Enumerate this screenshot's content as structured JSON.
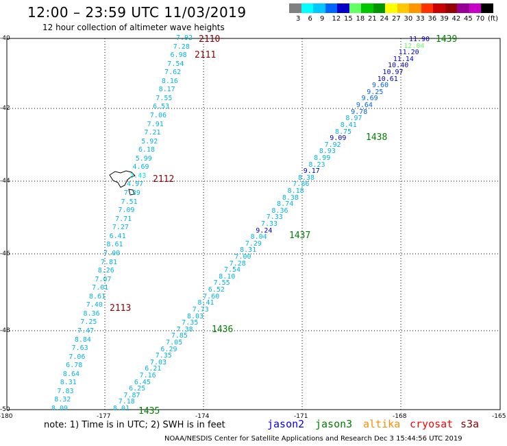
{
  "header": {
    "title": "12:00 – 23:59 UTC 11/03/2019",
    "subtitle": "12 hour collection of altimeter wave heights"
  },
  "colorbar": {
    "colors": [
      "#808080",
      "#00ffff",
      "#00c8ff",
      "#0064ff",
      "#0000c8",
      "#64ff64",
      "#00c800",
      "#009600",
      "#ffff00",
      "#ffc800",
      "#ff9600",
      "#ff3200",
      "#c80000",
      "#960000",
      "#960096",
      "#c800c8",
      "#000000"
    ],
    "labels": [
      "3",
      "6",
      "9",
      "12",
      "15",
      "18",
      "21",
      "24",
      "27",
      "30",
      "33",
      "36",
      "39",
      "42",
      "45",
      "70",
      "(ft)"
    ]
  },
  "axes": {
    "lat_labels": [
      "-40",
      "-42",
      "-44",
      "-46",
      "-48",
      "-50"
    ],
    "lon_labels": [
      "-180",
      "-177",
      "-174",
      "-171",
      "-168",
      "-165"
    ]
  },
  "tracks": {
    "west": [
      {
        "v": "7.92",
        "c": "#00b4e6"
      },
      {
        "v": "7.28",
        "c": "#00b4e6"
      },
      {
        "v": "6.98",
        "c": "#00b4e6"
      },
      {
        "v": "7.54",
        "c": "#00b4e6"
      },
      {
        "v": "7.62",
        "c": "#00b4e6"
      },
      {
        "v": "8.16",
        "c": "#00b4e6"
      },
      {
        "v": "8.17",
        "c": "#00b4e6"
      },
      {
        "v": "7.55",
        "c": "#00b4e6"
      },
      {
        "v": "6.53",
        "c": "#00b4e6"
      },
      {
        "v": "7.06",
        "c": "#00b4e6"
      },
      {
        "v": "7.91",
        "c": "#00b4e6"
      },
      {
        "v": "7.21",
        "c": "#00b4e6"
      },
      {
        "v": "5.92",
        "c": "#00b4e6"
      },
      {
        "v": "6.18",
        "c": "#00b4e6"
      },
      {
        "v": "5.99",
        "c": "#00b4e6"
      },
      {
        "v": "4.69",
        "c": "#00b4e6"
      },
      {
        "v": "3.43",
        "c": "#00e6e6"
      },
      {
        "v": "4.97",
        "c": "#00b4e6"
      },
      {
        "v": "7.39",
        "c": "#00b4e6"
      },
      {
        "v": "7.51",
        "c": "#00b4e6"
      },
      {
        "v": "7.09",
        "c": "#00b4e6"
      },
      {
        "v": "7.71",
        "c": "#00b4e6"
      },
      {
        "v": "7.27",
        "c": "#00b4e6"
      },
      {
        "v": "6.41",
        "c": "#00b4e6"
      },
      {
        "v": "8.61",
        "c": "#00b4e6"
      },
      {
        "v": "7.00",
        "c": "#00b4e6"
      },
      {
        "v": "7.81",
        "c": "#00b4e6"
      },
      {
        "v": "8.26",
        "c": "#00b4e6"
      },
      {
        "v": "7.07",
        "c": "#00b4e6"
      },
      {
        "v": "7.01",
        "c": "#00b4e6"
      },
      {
        "v": "8.61",
        "c": "#00b4e6"
      },
      {
        "v": "7.40",
        "c": "#00b4e6"
      },
      {
        "v": "8.36",
        "c": "#00b4e6"
      },
      {
        "v": "7.25",
        "c": "#00b4e6"
      },
      {
        "v": "7.47",
        "c": "#00b4e6"
      },
      {
        "v": "8.84",
        "c": "#00b4e6"
      },
      {
        "v": "7.63",
        "c": "#00b4e6"
      },
      {
        "v": "7.06",
        "c": "#00b4e6"
      },
      {
        "v": "6.78",
        "c": "#00b4e6"
      },
      {
        "v": "8.64",
        "c": "#00b4e6"
      },
      {
        "v": "8.31",
        "c": "#00b4e6"
      },
      {
        "v": "7.83",
        "c": "#00b4e6"
      },
      {
        "v": "8.32",
        "c": "#00b4e6"
      },
      {
        "v": "8.09",
        "c": "#00b4e6"
      }
    ],
    "east": [
      {
        "v": "11.90",
        "c": "#0000c8"
      },
      {
        "v": "12.04",
        "c": "#64ff64"
      },
      {
        "v": "11.20",
        "c": "#0000c8"
      },
      {
        "v": "11.14",
        "c": "#0000c8"
      },
      {
        "v": "10.40",
        "c": "#0000c8"
      },
      {
        "v": "10.97",
        "c": "#0000c8"
      },
      {
        "v": "10.61",
        "c": "#0000c8"
      },
      {
        "v": "9.60",
        "c": "#0064ff"
      },
      {
        "v": "9.25",
        "c": "#0064ff"
      },
      {
        "v": "9.69",
        "c": "#0064ff"
      },
      {
        "v": "9.64",
        "c": "#0064ff"
      },
      {
        "v": "9.78",
        "c": "#0064ff"
      },
      {
        "v": "8.97",
        "c": "#00b4e6"
      },
      {
        "v": "8.41",
        "c": "#00b4e6"
      },
      {
        "v": "8.75",
        "c": "#00b4e6"
      },
      {
        "v": "9.09",
        "c": "#0000c8"
      },
      {
        "v": "7.92",
        "c": "#00b4e6"
      },
      {
        "v": "8.93",
        "c": "#00b4e6"
      },
      {
        "v": "8.99",
        "c": "#00b4e6"
      },
      {
        "v": "8.23",
        "c": "#00b4e6"
      },
      {
        "v": "9.17",
        "c": "#0000c8"
      },
      {
        "v": "8.38",
        "c": "#00b4e6"
      },
      {
        "v": "7.86",
        "c": "#00b4e6"
      },
      {
        "v": "8.18",
        "c": "#00b4e6"
      },
      {
        "v": "8.38",
        "c": "#00b4e6"
      },
      {
        "v": "8.74",
        "c": "#00b4e6"
      },
      {
        "v": "8.36",
        "c": "#00b4e6"
      },
      {
        "v": "7.33",
        "c": "#00b4e6"
      },
      {
        "v": "7.33",
        "c": "#00b4e6"
      },
      {
        "v": "9.24",
        "c": "#0000c8"
      },
      {
        "v": "8.04",
        "c": "#00b4e6"
      },
      {
        "v": "7.29",
        "c": "#00b4e6"
      },
      {
        "v": "8.31",
        "c": "#00b4e6"
      },
      {
        "v": "7.00",
        "c": "#00b4e6"
      },
      {
        "v": "7.28",
        "c": "#00b4e6"
      },
      {
        "v": "7.54",
        "c": "#00b4e6"
      },
      {
        "v": "8.10",
        "c": "#00b4e6"
      },
      {
        "v": "7.55",
        "c": "#00b4e6"
      },
      {
        "v": "6.52",
        "c": "#00b4e6"
      },
      {
        "v": "7.60",
        "c": "#00b4e6"
      },
      {
        "v": "8.41",
        "c": "#00b4e6"
      },
      {
        "v": "7.73",
        "c": "#00b4e6"
      },
      {
        "v": "8.03",
        "c": "#00b4e6"
      },
      {
        "v": "7.35",
        "c": "#00b4e6"
      },
      {
        "v": "7.38",
        "c": "#00b4e6"
      },
      {
        "v": "7.85",
        "c": "#00b4e6"
      },
      {
        "v": "7.05",
        "c": "#00b4e6"
      },
      {
        "v": "6.29",
        "c": "#00b4e6"
      },
      {
        "v": "7.35",
        "c": "#00b4e6"
      },
      {
        "v": "7.03",
        "c": "#00b4e6"
      },
      {
        "v": "6.21",
        "c": "#00b4e6"
      },
      {
        "v": "7.16",
        "c": "#00b4e6"
      },
      {
        "v": "6.45",
        "c": "#00b4e6"
      },
      {
        "v": "6.25",
        "c": "#00b4e6"
      },
      {
        "v": "7.87",
        "c": "#00b4e6"
      },
      {
        "v": "7.18",
        "c": "#00b4e6"
      },
      {
        "v": "8.01",
        "c": "#00b4e6"
      }
    ]
  },
  "pass_times": [
    {
      "t": "2110",
      "c": "#8b0000"
    },
    {
      "t": "2111",
      "c": "#8b0000"
    },
    {
      "t": "2112",
      "c": "#8b0000"
    },
    {
      "t": "2113",
      "c": "#8b0000"
    },
    {
      "t": "1439",
      "c": "#008000"
    },
    {
      "t": "1438",
      "c": "#008000"
    },
    {
      "t": "1437",
      "c": "#008000"
    },
    {
      "t": "1436",
      "c": "#008000"
    },
    {
      "t": "1435",
      "c": "#008000"
    }
  ],
  "note": "note: 1) Time is in UTC; 2) SWH is in feet",
  "legend": [
    {
      "name": "jason2",
      "color": "#0000ff"
    },
    {
      "name": "jason3",
      "color": "#008000"
    },
    {
      "name": "altika",
      "color": "#ff8c00"
    },
    {
      "name": "cryosat",
      "color": "#ff0000"
    },
    {
      "name": "s3a",
      "color": "#8b0000"
    }
  ],
  "footer": "NOAA/NESDIS Center for Satellite Applications and Research  Dec  3 15:44:56 UTC 2019"
}
